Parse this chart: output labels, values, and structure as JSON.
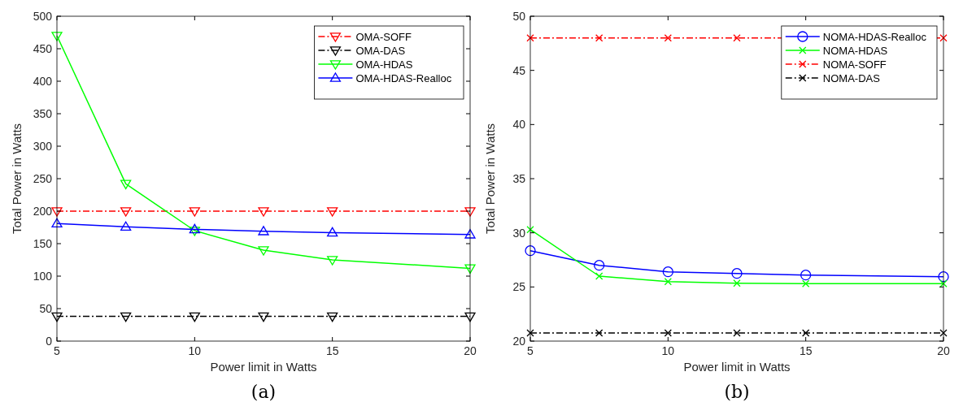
{
  "chart_data": [
    {
      "type": "line",
      "xlabel": "Power limit in Watts",
      "ylabel": "Total Power in Watts",
      "annotations": [
        "(a)"
      ],
      "x": [
        5,
        7.5,
        10,
        12.5,
        15,
        20
      ],
      "xlim": [
        5,
        20
      ],
      "xticks": [
        5,
        10,
        15,
        20
      ],
      "ylim": [
        0,
        500
      ],
      "yticks": [
        0,
        50,
        100,
        150,
        200,
        250,
        300,
        350,
        400,
        450,
        500
      ],
      "legend": "top right",
      "grid": false,
      "series": [
        {
          "name": "OMA-SOFF",
          "color": "#ff0000",
          "marker": "triangle-down",
          "line_style": "dashdot",
          "values": [
            200,
            200,
            200,
            200,
            200,
            200
          ]
        },
        {
          "name": "OMA-DAS",
          "color": "#000000",
          "marker": "triangle-down",
          "line_style": "dashdot",
          "values": [
            38,
            38,
            38,
            38,
            38,
            38
          ]
        },
        {
          "name": "OMA-HDAS",
          "color": "#00ff00",
          "marker": "triangle-down",
          "line_style": "solid",
          "values": [
            470,
            242,
            170,
            140,
            125,
            112
          ]
        },
        {
          "name": "OMA-HDAS-Realloc",
          "color": "#0000ff",
          "marker": "triangle",
          "line_style": "solid",
          "values": [
            181,
            176,
            172,
            169,
            167,
            164
          ]
        }
      ]
    },
    {
      "type": "line",
      "xlabel": "Power limit in Watts",
      "ylabel": "Total Power in Watts",
      "annotations": [
        "(b)"
      ],
      "x": [
        5,
        7.5,
        10,
        12.5,
        15,
        20
      ],
      "xlim": [
        5,
        20
      ],
      "xticks": [
        5,
        10,
        15,
        20
      ],
      "ylim": [
        20,
        50
      ],
      "yticks": [
        20,
        25,
        30,
        35,
        40,
        45,
        50
      ],
      "legend": "top right",
      "grid": false,
      "series": [
        {
          "name": "NOMA-HDAS-Realloc",
          "color": "#0000ff",
          "marker": "circle",
          "line_style": "solid",
          "values": [
            28.35,
            27.0,
            26.4,
            26.25,
            26.1,
            25.95
          ]
        },
        {
          "name": "NOMA-HDAS",
          "color": "#00ff00",
          "marker": "cross",
          "line_style": "solid",
          "values": [
            30.3,
            26.0,
            25.5,
            25.35,
            25.3,
            25.3
          ]
        },
        {
          "name": "NOMA-SOFF",
          "color": "#ff0000",
          "marker": "cross",
          "line_style": "dashdot",
          "values": [
            48,
            48,
            48,
            48,
            null,
            48
          ]
        },
        {
          "name": "NOMA-DAS",
          "color": "#000000",
          "marker": "cross",
          "line_style": "dashdot",
          "values": [
            20.75,
            20.75,
            20.75,
            20.75,
            20.75,
            20.75
          ]
        }
      ]
    }
  ]
}
